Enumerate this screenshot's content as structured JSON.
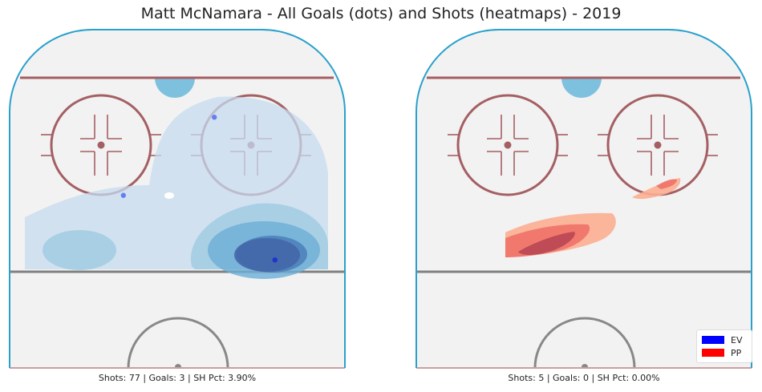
{
  "chart_data": {
    "type": "heatmap",
    "title": "Matt McNamara - All Goals (dots) and Shots (heatmaps) - 2019",
    "panels": [
      {
        "name": "EV",
        "color": "#1f4fb4",
        "caption": "Shots: 77 | Goals: 3 | SH Pct: 3.90%",
        "shots": 77,
        "goals_count": 3,
        "sh_pct": "3.90%",
        "goals": [
          {
            "x": 0.61,
            "y": 0.26
          },
          {
            "x": 0.34,
            "y": 0.49
          },
          {
            "x": 0.79,
            "y": 0.68
          }
        ]
      },
      {
        "name": "PP",
        "color": "#e0302a",
        "caption": "Shots: 5 | Goals: 0 | SH Pct: 0.00%",
        "shots": 5,
        "goals_count": 0,
        "sh_pct": "0.00%",
        "goals": []
      }
    ],
    "legend": {
      "position": "bottom-right",
      "entries": [
        {
          "label": "EV",
          "color": "#0000ff"
        },
        {
          "label": "PP",
          "color": "#ff0000"
        }
      ]
    }
  }
}
